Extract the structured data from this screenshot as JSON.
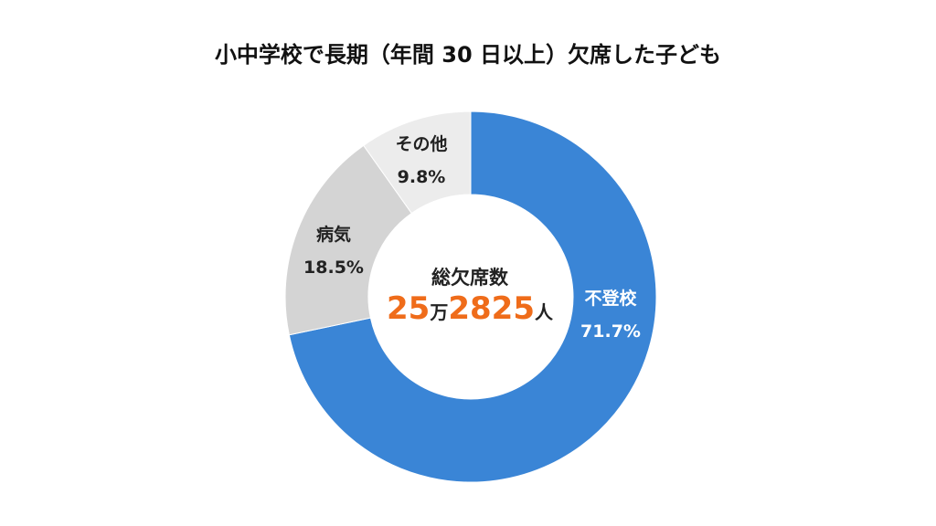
{
  "chart_data": {
    "type": "pie",
    "title": "小中学校で長期（年間 30 日以上）欠席した子ども",
    "categories": [
      "不登校",
      "病気",
      "その他"
    ],
    "values": [
      71.7,
      18.5,
      9.8
    ],
    "value_labels": [
      "71.7%",
      "18.5%",
      "9.8%"
    ],
    "colors": [
      "#3a85d6",
      "#d4d4d4",
      "#ececec"
    ],
    "label_colors": [
      "#ffffff",
      "#222222",
      "#222222"
    ]
  },
  "center": {
    "label": "総欠席数",
    "number_a": "25",
    "unit_a": "万",
    "number_b": "2825",
    "unit_b": "人"
  }
}
